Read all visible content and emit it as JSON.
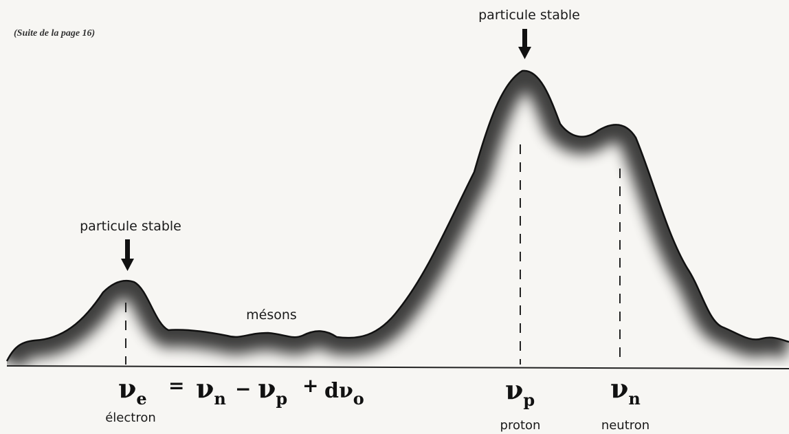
{
  "caption": "(Suite de la page 16)",
  "peaks": {
    "electron": {
      "marker": "particule stable",
      "symbol": "ν",
      "sub": "e",
      "name": "électron"
    },
    "proton": {
      "marker": "particule stable",
      "symbol": "ν",
      "sub": "p",
      "name": "proton"
    },
    "neutron": {
      "symbol": "ν",
      "sub": "n",
      "name": "neutron"
    }
  },
  "mesons": "mésons",
  "formula": [
    "=",
    {
      "symbol": "ν",
      "sub": "n"
    },
    "−",
    {
      "symbol": "ν",
      "sub": "p"
    },
    "+",
    {
      "symbol": "dν",
      "sub": "o"
    }
  ]
}
